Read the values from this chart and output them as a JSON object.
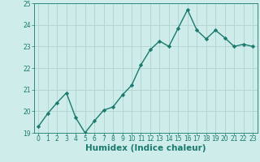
{
  "x": [
    0,
    1,
    2,
    3,
    4,
    5,
    6,
    7,
    8,
    9,
    10,
    11,
    12,
    13,
    14,
    15,
    16,
    17,
    18,
    19,
    20,
    21,
    22,
    23
  ],
  "y": [
    19.3,
    19.9,
    20.4,
    20.85,
    19.7,
    19.0,
    19.55,
    20.05,
    20.2,
    20.75,
    21.2,
    22.15,
    22.85,
    23.25,
    23.0,
    23.85,
    24.7,
    23.75,
    23.35,
    23.75,
    23.4,
    23.0,
    23.1,
    23.0
  ],
  "line_color": "#1a7a6e",
  "marker": "D",
  "marker_size": 2.2,
  "bg_color": "#ceecea",
  "grid_color": "#b0d4d0",
  "xlabel": "Humidex (Indice chaleur)",
  "ylim": [
    19,
    25
  ],
  "xlim": [
    -0.5,
    23.5
  ],
  "yticks": [
    19,
    20,
    21,
    22,
    23,
    24,
    25
  ],
  "xticks": [
    0,
    1,
    2,
    3,
    4,
    5,
    6,
    7,
    8,
    9,
    10,
    11,
    12,
    13,
    14,
    15,
    16,
    17,
    18,
    19,
    20,
    21,
    22,
    23
  ],
  "axis_color": "#1a7a6e",
  "tick_labelsize": 5.5,
  "xlabel_fontsize": 7.5,
  "linewidth": 1.0
}
